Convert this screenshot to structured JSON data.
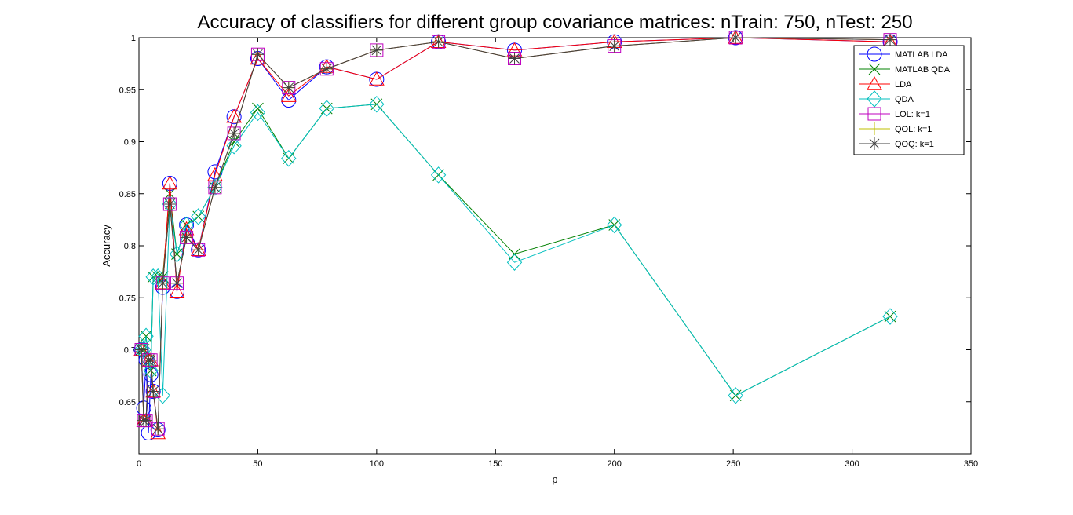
{
  "chart_data": {
    "type": "line",
    "title": "Accuracy of classifiers for different group covariance matrices: nTrain: 750, nTest: 250",
    "xlabel": "p",
    "ylabel": "Accuracy",
    "xlim": [
      0,
      350
    ],
    "ylim": [
      0.6,
      1.0
    ],
    "xticks": [
      0,
      50,
      100,
      150,
      200,
      250,
      300,
      350
    ],
    "yticks": [
      0.65,
      0.7,
      0.75,
      0.8,
      0.85,
      0.9,
      0.95,
      1
    ],
    "ytick_labels": [
      "0.65",
      "0.7",
      "0.75",
      "0.8",
      "0.85",
      "0.9",
      "0.95",
      "1"
    ],
    "xtick_labels": [
      "0",
      "50",
      "100",
      "150",
      "200",
      "250",
      "300",
      "350"
    ],
    "legend_position": "top-right",
    "x": [
      1,
      2,
      3,
      4,
      5,
      6,
      8,
      10,
      13,
      16,
      20,
      25,
      32,
      40,
      50,
      63,
      79,
      100,
      126,
      158,
      200,
      251,
      316
    ],
    "series": [
      {
        "name": "MATLAB LDA",
        "color": "#0000ff",
        "marker": "circle",
        "values": [
          0.7,
          0.644,
          0.69,
          0.62,
          0.676,
          0.66,
          0.623,
          0.76,
          0.86,
          0.756,
          0.82,
          0.796,
          0.871,
          0.924,
          0.98,
          0.94,
          0.972,
          0.96,
          0.996,
          0.988,
          0.996,
          1.0,
          0.996
        ]
      },
      {
        "name": "MATLAB QDA",
        "color": "#008000",
        "marker": "x",
        "values": [
          0.7,
          0.7,
          0.713,
          0.69,
          0.68,
          0.77,
          0.77,
          0.77,
          0.85,
          0.792,
          0.82,
          0.828,
          0.856,
          0.9,
          0.932,
          0.884,
          0.932,
          0.936,
          0.868,
          0.792,
          0.82,
          0.656,
          0.732
        ]
      },
      {
        "name": "LDA",
        "color": "#ff0000",
        "marker": "triangle",
        "values": [
          0.7,
          0.632,
          0.632,
          0.69,
          0.69,
          0.66,
          0.62,
          0.764,
          0.86,
          0.756,
          0.816,
          0.796,
          0.868,
          0.924,
          0.98,
          0.944,
          0.972,
          0.96,
          0.996,
          0.988,
          0.996,
          1.0,
          0.996
        ]
      },
      {
        "name": "QDA",
        "color": "#00bfbf",
        "marker": "diamond",
        "values": [
          0.7,
          0.7,
          0.713,
          0.69,
          0.68,
          0.77,
          0.77,
          0.656,
          0.84,
          0.792,
          0.82,
          0.828,
          0.856,
          0.896,
          0.928,
          0.884,
          0.932,
          0.936,
          0.868,
          0.784,
          0.82,
          0.656,
          0.732
        ]
      },
      {
        "name": "LOL: k=1",
        "color": "#bf00bf",
        "marker": "square",
        "values": [
          0.7,
          0.632,
          0.632,
          0.69,
          0.69,
          0.66,
          0.624,
          0.764,
          0.84,
          0.764,
          0.808,
          0.796,
          0.856,
          0.908,
          0.984,
          0.952,
          0.97,
          0.988,
          0.996,
          0.98,
          0.992,
          1.0,
          0.998
        ]
      },
      {
        "name": "QOL: k=1",
        "color": "#bfbf00",
        "marker": "plus",
        "values": [
          0.7,
          0.632,
          0.632,
          0.69,
          0.69,
          0.66,
          0.624,
          0.764,
          0.84,
          0.764,
          0.808,
          0.796,
          0.856,
          0.908,
          0.984,
          0.952,
          0.97,
          0.988,
          0.996,
          0.98,
          0.992,
          1.0,
          0.998
        ]
      },
      {
        "name": "QOQ: k=1",
        "color": "#404040",
        "marker": "asterisk",
        "values": [
          0.7,
          0.632,
          0.632,
          0.69,
          0.69,
          0.66,
          0.624,
          0.764,
          0.84,
          0.764,
          0.808,
          0.796,
          0.856,
          0.908,
          0.984,
          0.952,
          0.97,
          0.988,
          0.996,
          0.98,
          0.992,
          1.0,
          0.998
        ]
      }
    ]
  }
}
